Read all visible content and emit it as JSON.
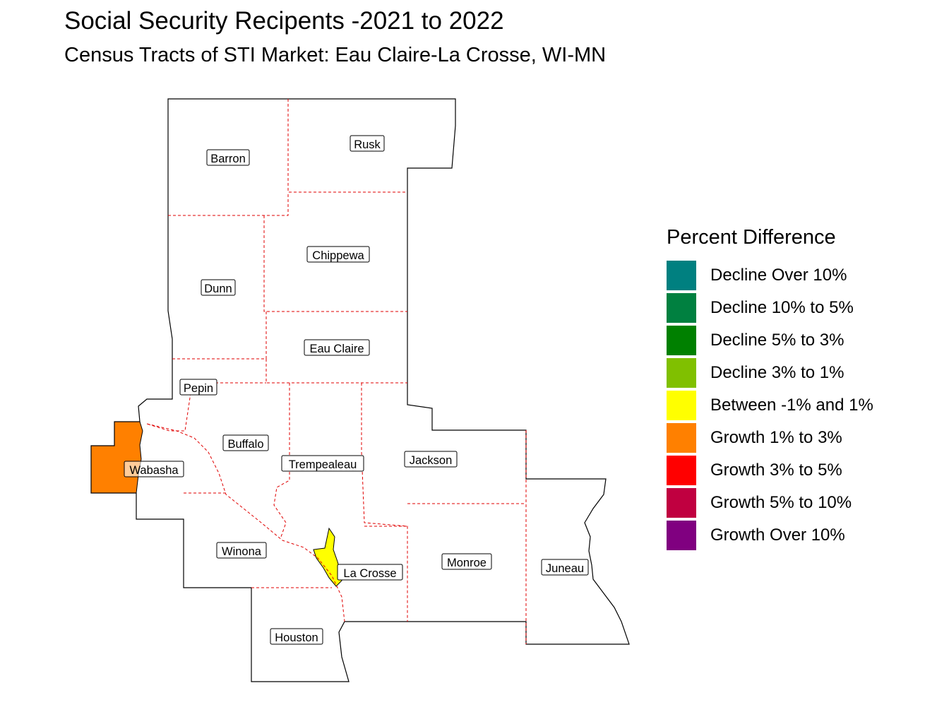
{
  "title": "Social Security Recipents -2021 to 2022",
  "subtitle": "Census Tracts of STI Market: Eau Claire-La Crosse, WI-MN",
  "legend": {
    "title": "Percent Difference",
    "items": [
      {
        "label": "Decline Over 10%",
        "color": "#008080"
      },
      {
        "label": "Decline 10% to 5%",
        "color": "#008040"
      },
      {
        "label": "Decline 5% to 3%",
        "color": "#008000"
      },
      {
        "label": "Decline 3% to 1%",
        "color": "#80c000"
      },
      {
        "label": "Between -1% and 1%",
        "color": "#ffff00"
      },
      {
        "label": "Growth 1% to 3%",
        "color": "#ff8000"
      },
      {
        "label": "Growth 3% to 5%",
        "color": "#ff0000"
      },
      {
        "label": "Growth 5% to 10%",
        "color": "#c00040"
      },
      {
        "label": "Growth Over 10%",
        "color": "#800080"
      }
    ]
  },
  "counties": {
    "barron": "Barron",
    "rusk": "Rusk",
    "chippewa": "Chippewa",
    "dunn": "Dunn",
    "eau_claire": "Eau Claire",
    "pepin": "Pepin",
    "buffalo": "Buffalo",
    "trempealeau": "Trempealeau",
    "jackson": "Jackson",
    "wabasha": "Wabasha",
    "winona": "Winona",
    "la_crosse": "La Crosse",
    "monroe": "Monroe",
    "juneau": "Juneau",
    "houston": "Houston"
  },
  "colors": {
    "outline": "#000000",
    "county_border": "#e00000",
    "wabasha_fill": "#ff8000",
    "la_crosse_fill": "#ffff00"
  }
}
